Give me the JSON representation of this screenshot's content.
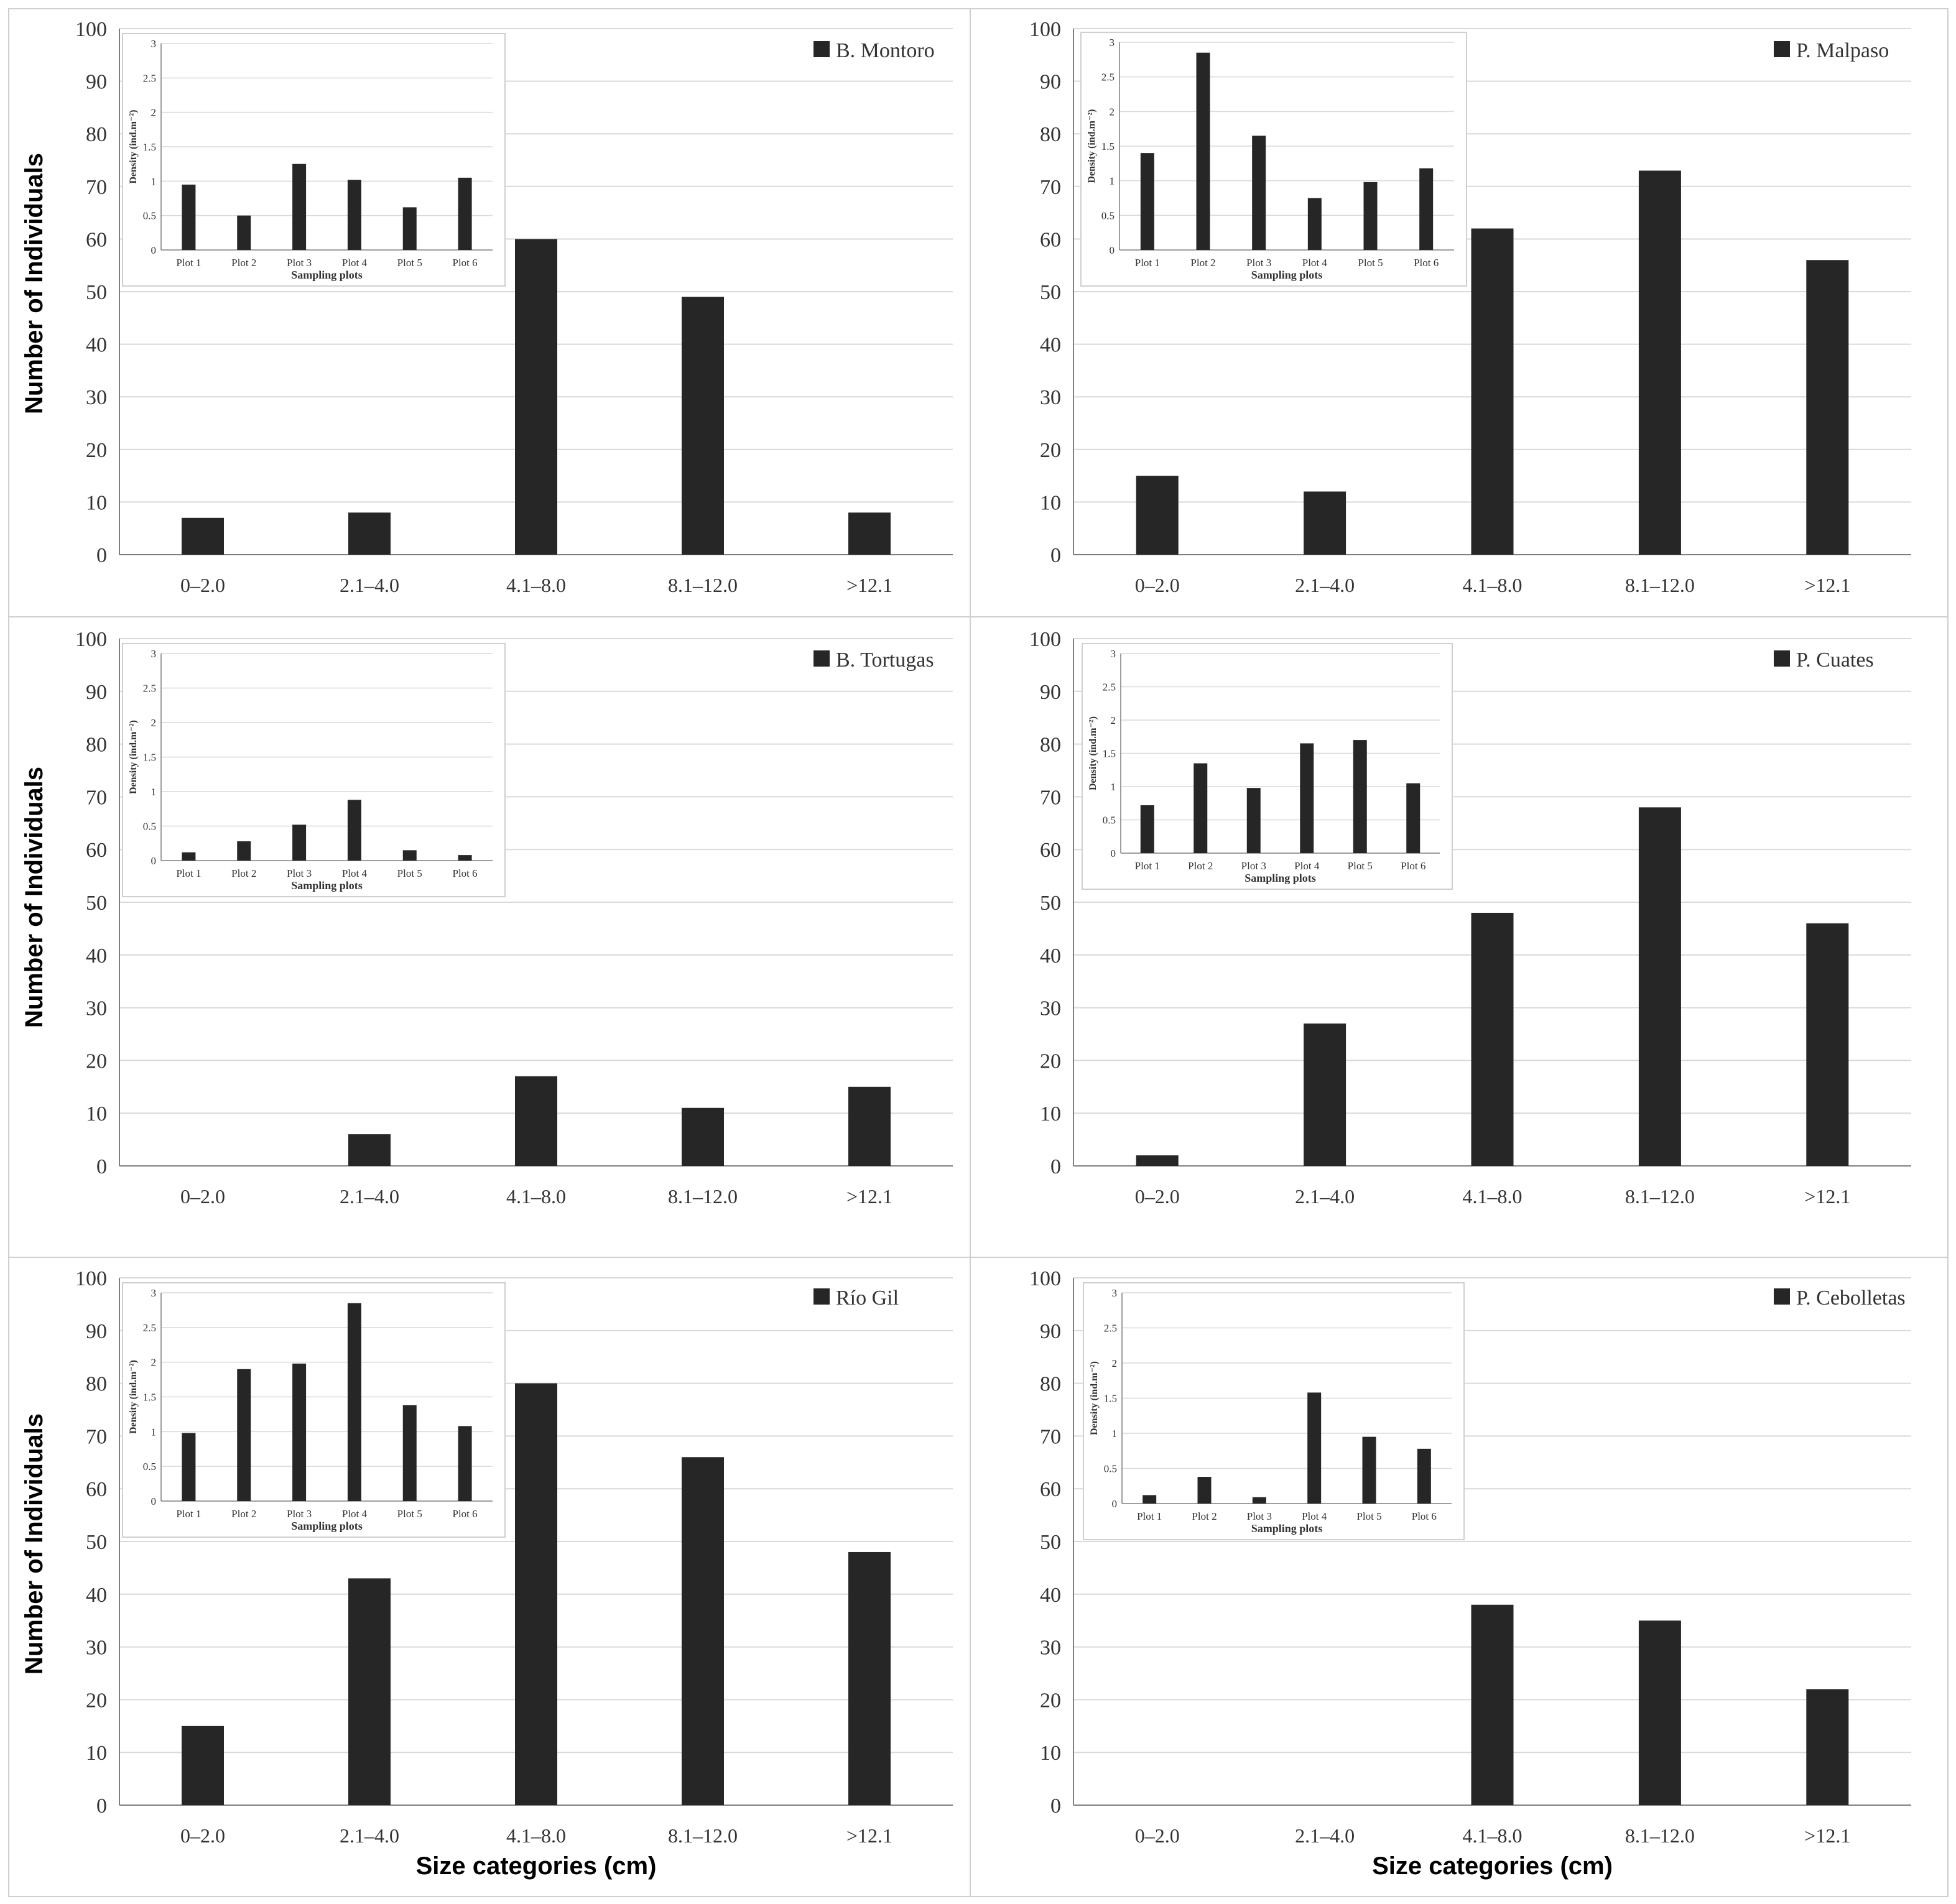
{
  "colors": {
    "bar": "#262626",
    "grid": "#d9d9d9",
    "axis": "#7f7f7f",
    "panel_border": "#cfcfcf"
  },
  "chart_data": [
    {
      "type": "bar",
      "title": "B. Montoro",
      "categories": [
        "0–2.0",
        "2.1–4.0",
        "4.1–8.0",
        "8.1–12.0",
        ">12.1"
      ],
      "values": [
        7,
        8,
        60,
        49,
        8
      ],
      "ylim": [
        0,
        100
      ],
      "yticks": [
        0,
        10,
        20,
        30,
        40,
        50,
        60,
        70,
        80,
        90,
        100
      ],
      "ylabel": "Number of Individuals",
      "xlabel": "",
      "legend": "top-right",
      "inset": {
        "type": "bar",
        "categories": [
          "Plot 1",
          "Plot 2",
          "Plot 3",
          "Plot 4",
          "Plot 5",
          "Plot 6"
        ],
        "values": [
          0.95,
          0.5,
          1.25,
          1.02,
          0.62,
          1.05
        ],
        "ylim": [
          0,
          3
        ],
        "yticks": [
          "0",
          "0.5",
          "1",
          "1.5",
          "2",
          "2.5",
          "3"
        ],
        "ylabel": "Density (ind.m⁻²)",
        "xlabel": "Sampling plots"
      }
    },
    {
      "type": "bar",
      "title": "P. Malpaso",
      "categories": [
        "0–2.0",
        "2.1–4.0",
        "4.1–8.0",
        "8.1–12.0",
        ">12.1"
      ],
      "values": [
        15,
        12,
        62,
        73,
        56
      ],
      "ylim": [
        0,
        100
      ],
      "yticks": [
        0,
        10,
        20,
        30,
        40,
        50,
        60,
        70,
        80,
        90,
        100
      ],
      "ylabel": "",
      "xlabel": "",
      "legend": "top-right",
      "inset": {
        "type": "bar",
        "categories": [
          "Plot 1",
          "Plot 2",
          "Plot 3",
          "Plot 4",
          "Plot 5",
          "Plot 6"
        ],
        "values": [
          1.4,
          2.85,
          1.65,
          0.75,
          0.98,
          1.18
        ],
        "ylim": [
          0,
          3
        ],
        "yticks": [
          "0",
          "0.5",
          "1",
          "1.5",
          "2",
          "2.5",
          "3"
        ],
        "ylabel": "Density (ind.m⁻²)",
        "xlabel": "Sampling plots"
      }
    },
    {
      "type": "bar",
      "title": "B. Tortugas",
      "categories": [
        "0–2.0",
        "2.1–4.0",
        "4.1–8.0",
        "8.1–12.0",
        ">12.1"
      ],
      "values": [
        0,
        6,
        17,
        11,
        15
      ],
      "ylim": [
        0,
        100
      ],
      "yticks": [
        0,
        10,
        20,
        30,
        40,
        50,
        60,
        70,
        80,
        90,
        100
      ],
      "ylabel": "Number of Individuals",
      "xlabel": "",
      "legend": "top-right",
      "inset": {
        "type": "bar",
        "categories": [
          "Plot 1",
          "Plot 2",
          "Plot 3",
          "Plot 4",
          "Plot 5",
          "Plot 6"
        ],
        "values": [
          0.12,
          0.28,
          0.52,
          0.88,
          0.15,
          0.08
        ],
        "ylim": [
          0,
          3
        ],
        "yticks": [
          "0",
          "0.5",
          "1",
          "1.5",
          "2",
          "2.5",
          "3"
        ],
        "ylabel": "Density (ind.m⁻²)",
        "xlabel": "Sampling plots"
      }
    },
    {
      "type": "bar",
      "title": "P. Cuates",
      "categories": [
        "0–2.0",
        "2.1–4.0",
        "4.1–8.0",
        "8.1–12.0",
        ">12.1"
      ],
      "values": [
        2,
        27,
        48,
        68,
        46
      ],
      "ylim": [
        0,
        100
      ],
      "yticks": [
        0,
        10,
        20,
        30,
        40,
        50,
        60,
        70,
        80,
        90,
        100
      ],
      "ylabel": "",
      "xlabel": "",
      "legend": "top-right",
      "inset": {
        "type": "bar",
        "categories": [
          "Plot 1",
          "Plot 2",
          "Plot 3",
          "Plot 4",
          "Plot 5",
          "Plot 6"
        ],
        "values": [
          0.72,
          1.35,
          0.98,
          1.65,
          1.7,
          1.05
        ],
        "ylim": [
          0,
          3
        ],
        "yticks": [
          "0",
          "0.5",
          "1",
          "1.5",
          "2",
          "2.5",
          "3"
        ],
        "ylabel": "Density (ind.m⁻²)",
        "xlabel": "Sampling plots"
      }
    },
    {
      "type": "bar",
      "title": "Río Gil",
      "categories": [
        "0–2.0",
        "2.1–4.0",
        "4.1–8.0",
        "8.1–12.0",
        ">12.1"
      ],
      "values": [
        15,
        43,
        80,
        66,
        48
      ],
      "ylim": [
        0,
        100
      ],
      "yticks": [
        0,
        10,
        20,
        30,
        40,
        50,
        60,
        70,
        80,
        90,
        100
      ],
      "ylabel": "Number of Individuals",
      "xlabel": "Size categories (cm)",
      "legend": "top-right",
      "inset": {
        "type": "bar",
        "categories": [
          "Plot 1",
          "Plot 2",
          "Plot 3",
          "Plot 4",
          "Plot 5",
          "Plot 6"
        ],
        "values": [
          0.98,
          1.9,
          1.98,
          2.85,
          1.38,
          1.08
        ],
        "ylim": [
          0,
          3
        ],
        "yticks": [
          "0",
          "0.5",
          "1",
          "1.5",
          "2",
          "2.5",
          "3"
        ],
        "ylabel": "Density (ind.m⁻²)",
        "xlabel": "Sampling plots"
      }
    },
    {
      "type": "bar",
      "title": "P. Cebolletas",
      "categories": [
        "0–2.0",
        "2.1–4.0",
        "4.1–8.0",
        "8.1–12.0",
        ">12.1"
      ],
      "values": [
        0,
        0,
        38,
        35,
        22
      ],
      "ylim": [
        0,
        100
      ],
      "yticks": [
        0,
        10,
        20,
        30,
        40,
        50,
        60,
        70,
        80,
        90,
        100
      ],
      "ylabel": "",
      "xlabel": "Size categories (cm)",
      "legend": "top-right",
      "inset": {
        "type": "bar",
        "categories": [
          "Plot 1",
          "Plot 2",
          "Plot 3",
          "Plot 4",
          "Plot 5",
          "Plot 6"
        ],
        "values": [
          0.12,
          0.38,
          0.09,
          1.58,
          0.95,
          0.78
        ],
        "ylim": [
          0,
          3
        ],
        "yticks": [
          "0",
          "0.5",
          "1",
          "1.5",
          "2",
          "2.5",
          "3"
        ],
        "ylabel": "Density (ind.m⁻²)",
        "xlabel": "Sampling plots"
      }
    }
  ]
}
